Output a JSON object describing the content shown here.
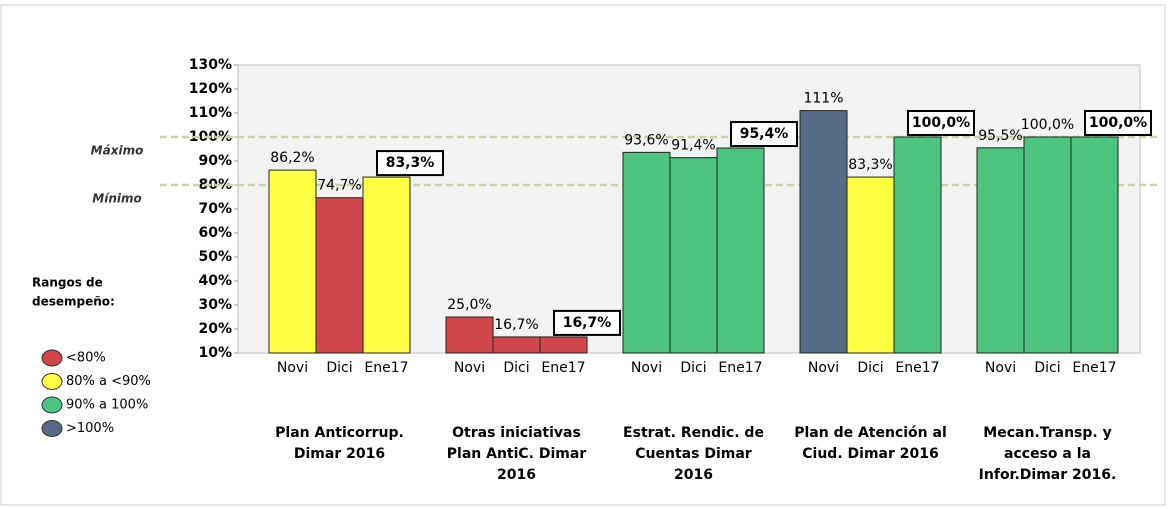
{
  "chart_data": {
    "type": "grouped_bar",
    "categories": [
      [
        "Plan Anticorrup.",
        "Dimar 2016"
      ],
      [
        "Otras iniciativas",
        "Plan AntiC. Dimar",
        "2016"
      ],
      [
        "Estrat. Rendic. de",
        "Cuentas Dimar",
        "2016"
      ],
      [
        "Plan de Atención al",
        "Ciud. Dimar 2016"
      ],
      [
        "Mecan.Transp. y",
        "acceso a la",
        "Infor.Dimar 2016."
      ]
    ],
    "series": [
      {
        "name": "Novi",
        "values": [
          86.2,
          25.0,
          93.6,
          111,
          95.5
        ],
        "value_labels": [
          "86,2%",
          "25,0%",
          "93,6%",
          "111%",
          "95,5%"
        ],
        "colors": [
          "#ffff44",
          "#d0464a",
          "#4cc47f",
          "#566c86",
          "#4cc47f"
        ]
      },
      {
        "name": "Dici",
        "values": [
          74.7,
          16.7,
          91.4,
          83.3,
          100.0
        ],
        "value_labels": [
          "74,7%",
          "16,7%",
          "91,4%",
          "83,3%",
          "100,0%"
        ],
        "colors": [
          "#d0464a",
          "#d0464a",
          "#4cc47f",
          "#ffff44",
          "#4cc47f"
        ]
      },
      {
        "name": "Ene17",
        "values": [
          83.3,
          16.7,
          95.4,
          100.0,
          100.0
        ],
        "value_labels": [
          "83,3%",
          "16,7%",
          "95,4%",
          "100,0%",
          "100,0%"
        ],
        "colors": [
          "#ffff44",
          "#d0464a",
          "#4cc47f",
          "#4cc47f",
          "#4cc47f"
        ]
      }
    ],
    "ylim": [
      10,
      130
    ],
    "yticks": [
      {
        "value": 10,
        "label": "10%"
      },
      {
        "value": 20,
        "label": "20%"
      },
      {
        "value": 30,
        "label": "30%"
      },
      {
        "value": 40,
        "label": "40%"
      },
      {
        "value": 50,
        "label": "50%"
      },
      {
        "value": 60,
        "label": "60%"
      },
      {
        "value": 70,
        "label": "70%"
      },
      {
        "value": 80,
        "label": "80%"
      },
      {
        "value": 90,
        "label": "90%"
      },
      {
        "value": 100,
        "label": "100%"
      },
      {
        "value": 110,
        "label": "110%"
      },
      {
        "value": 120,
        "label": "120%"
      },
      {
        "value": 130,
        "label": "130%"
      }
    ],
    "reference_lines": [
      {
        "label": "Máximo",
        "value": 100
      },
      {
        "label": "Mínimo",
        "value": 80
      }
    ],
    "legend": {
      "title": [
        "Rangos de",
        "desempeño:"
      ],
      "items": [
        {
          "label": "<80%",
          "color": "#d0464a"
        },
        {
          "label": "80% a <90%",
          "color": "#ffff44"
        },
        {
          "label": "90% a 100%",
          "color": "#4cc47f"
        },
        {
          "label": ">100%",
          "color": "#566c86"
        }
      ]
    }
  }
}
